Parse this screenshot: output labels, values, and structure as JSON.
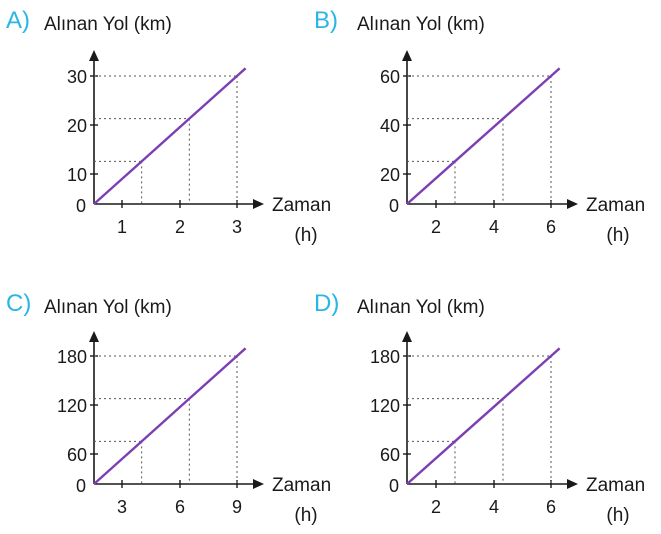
{
  "colors": {
    "line": "#7b3fb3",
    "option_label": "#29b6e6",
    "axis": "#1a1a1a",
    "guide": "#555555"
  },
  "chart_data": [
    {
      "option": "A)",
      "type": "line",
      "ylabel": "Alınan Yol (km)",
      "xlabel": "Zaman",
      "xunit": "(h)",
      "origin_label": "0",
      "x_ticks": [
        "1",
        "2",
        "3"
      ],
      "y_ticks": [
        "10",
        "20",
        "30"
      ],
      "x": [
        0,
        1,
        2,
        3
      ],
      "y": [
        0,
        10,
        20,
        30
      ],
      "xlim": [
        0,
        3
      ],
      "ylim": [
        0,
        30
      ],
      "grid": "dotted guides at ticks"
    },
    {
      "option": "B)",
      "type": "line",
      "ylabel": "Alınan Yol (km)",
      "xlabel": "Zaman",
      "xunit": "(h)",
      "origin_label": "0",
      "x_ticks": [
        "2",
        "4",
        "6"
      ],
      "y_ticks": [
        "20",
        "40",
        "60"
      ],
      "x": [
        0,
        2,
        4,
        6
      ],
      "y": [
        0,
        20,
        40,
        60
      ],
      "xlim": [
        0,
        6
      ],
      "ylim": [
        0,
        60
      ],
      "grid": "dotted guides at ticks"
    },
    {
      "option": "C)",
      "type": "line",
      "ylabel": "Alınan Yol (km)",
      "xlabel": "Zaman",
      "xunit": "(h)",
      "origin_label": "0",
      "x_ticks": [
        "3",
        "6",
        "9"
      ],
      "y_ticks": [
        "60",
        "120",
        "180"
      ],
      "x": [
        0,
        3,
        6,
        9
      ],
      "y": [
        0,
        60,
        120,
        180
      ],
      "xlim": [
        0,
        9
      ],
      "ylim": [
        0,
        180
      ],
      "grid": "dotted guides at ticks"
    },
    {
      "option": "D)",
      "type": "line",
      "ylabel": "Alınan Yol (km)",
      "xlabel": "Zaman",
      "xunit": "(h)",
      "origin_label": "0",
      "x_ticks": [
        "2",
        "4",
        "6"
      ],
      "y_ticks": [
        "60",
        "120",
        "180"
      ],
      "x": [
        0,
        2,
        4,
        6
      ],
      "y": [
        0,
        60,
        120,
        180
      ],
      "xlim": [
        0,
        6
      ],
      "ylim": [
        0,
        180
      ],
      "grid": "dotted guides at ticks"
    }
  ]
}
